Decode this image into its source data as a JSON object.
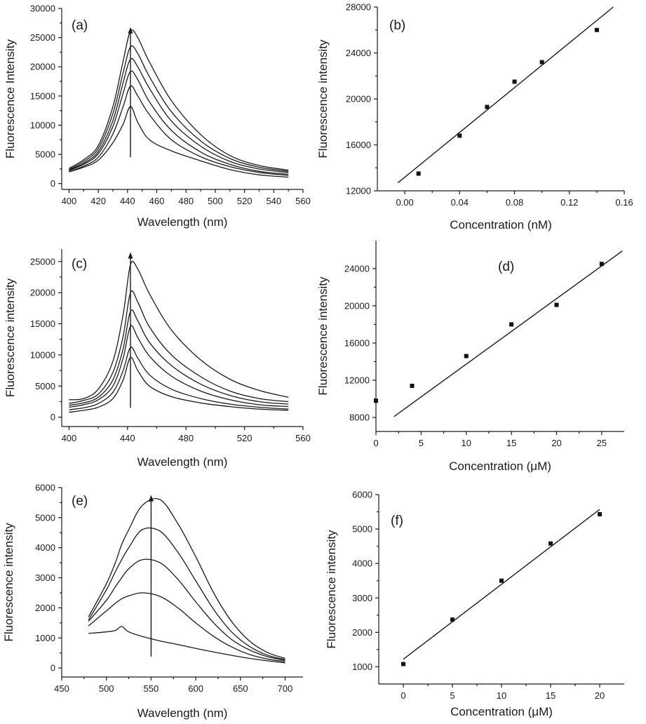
{
  "chart_data": [
    {
      "id": "a",
      "type": "line",
      "panel_label": "(a)",
      "xlabel": "Wavelength (nm)",
      "ylabel": "Fluorescence Intensity",
      "xlim": [
        395,
        560
      ],
      "ylim": [
        -1000,
        30000
      ],
      "xticks": [
        400,
        420,
        440,
        460,
        480,
        500,
        520,
        540,
        560
      ],
      "yticks": [
        0,
        5000,
        10000,
        15000,
        20000,
        25000,
        30000
      ],
      "arrow": {
        "x": 442,
        "y_from": 4500,
        "y_to": 26800
      },
      "series": [
        {
          "x": [
            400,
            410,
            420,
            430,
            437,
            442,
            447,
            455,
            470,
            490,
            510,
            530,
            550
          ],
          "values": [
            2000,
            2800,
            4000,
            7000,
            10200,
            13200,
            10500,
            7500,
            5600,
            3900,
            2400,
            1500,
            1100
          ]
        },
        {
          "x": [
            400,
            410,
            420,
            430,
            437,
            442,
            447,
            455,
            470,
            490,
            510,
            530,
            550
          ],
          "values": [
            2000,
            3000,
            4500,
            8500,
            13200,
            16700,
            15000,
            11800,
            7500,
            4600,
            2900,
            1900,
            1400
          ]
        },
        {
          "x": [
            400,
            410,
            420,
            430,
            437,
            442,
            447,
            455,
            470,
            490,
            510,
            530,
            550
          ],
          "values": [
            2200,
            3300,
            5100,
            9800,
            15500,
            19200,
            17800,
            14000,
            9100,
            5400,
            3300,
            2100,
            1600
          ]
        },
        {
          "x": [
            400,
            410,
            420,
            430,
            437,
            442,
            447,
            455,
            470,
            490,
            510,
            530,
            550
          ],
          "values": [
            2300,
            3500,
            5500,
            10800,
            17300,
            21300,
            20000,
            16300,
            10700,
            6400,
            3800,
            2500,
            1900
          ]
        },
        {
          "x": [
            400,
            410,
            420,
            430,
            437,
            442,
            447,
            455,
            470,
            490,
            510,
            530,
            550
          ],
          "values": [
            2400,
            3800,
            6000,
            12000,
            19000,
            23400,
            22300,
            18300,
            12300,
            7300,
            4300,
            2800,
            2100
          ]
        },
        {
          "x": [
            400,
            410,
            420,
            430,
            437,
            442,
            447,
            455,
            470,
            490,
            510,
            530,
            550
          ],
          "values": [
            2600,
            4100,
            6500,
            13200,
            21000,
            26100,
            25000,
            20800,
            14200,
            8400,
            4800,
            3100,
            2300
          ]
        }
      ]
    },
    {
      "id": "b",
      "type": "scatter",
      "panel_label": "(b)",
      "xlabel": "Concentration (nM)",
      "ylabel": "Fluorescence intensity",
      "xlim": [
        -0.02,
        0.16
      ],
      "ylim": [
        12000,
        28000
      ],
      "xticks": [
        0.0,
        0.04,
        0.08,
        0.12,
        0.16
      ],
      "xtick_labels": [
        "0.00",
        "0.04",
        "0.08",
        "0.12",
        "0.16"
      ],
      "yticks": [
        12000,
        16000,
        20000,
        24000,
        28000
      ],
      "points": [
        {
          "x": 0.01,
          "y": 13500
        },
        {
          "x": 0.04,
          "y": 16800
        },
        {
          "x": 0.06,
          "y": 19300
        },
        {
          "x": 0.08,
          "y": 21500
        },
        {
          "x": 0.1,
          "y": 23200
        },
        {
          "x": 0.14,
          "y": 26000
        }
      ],
      "fit": {
        "x": [
          -0.005,
          0.152
        ],
        "y": [
          12700,
          28000
        ]
      }
    },
    {
      "id": "c",
      "type": "line",
      "panel_label": "(c)",
      "xlabel": "Wavelength (nm)",
      "ylabel": "Fluorescence intensity",
      "xlim": [
        395,
        560
      ],
      "ylim": [
        -1500,
        27000
      ],
      "xticks": [
        400,
        440,
        480,
        520,
        560
      ],
      "yticks": [
        0,
        5000,
        10000,
        15000,
        20000,
        25000
      ],
      "arrow": {
        "x": 442,
        "y_from": 1500,
        "y_to": 26500
      },
      "series": [
        {
          "x": [
            400,
            410,
            420,
            430,
            437,
            442,
            447,
            455,
            470,
            490,
            510,
            530,
            550
          ],
          "values": [
            800,
            1100,
            1600,
            3000,
            6000,
            9600,
            7500,
            5000,
            3300,
            2300,
            1700,
            1300,
            1100
          ]
        },
        {
          "x": [
            400,
            410,
            420,
            430,
            437,
            442,
            447,
            455,
            470,
            490,
            510,
            530,
            550
          ],
          "values": [
            1200,
            1500,
            2200,
            4000,
            7500,
            11200,
            9500,
            6800,
            4500,
            3000,
            2100,
            1600,
            1300
          ]
        },
        {
          "x": [
            400,
            410,
            420,
            430,
            437,
            442,
            447,
            455,
            470,
            490,
            510,
            530,
            550
          ],
          "values": [
            1600,
            2000,
            2800,
            5000,
            9500,
            14600,
            12800,
            9800,
            6600,
            4200,
            2800,
            2000,
            1700
          ]
        },
        {
          "x": [
            400,
            410,
            420,
            430,
            437,
            442,
            447,
            455,
            470,
            490,
            510,
            530,
            550
          ],
          "values": [
            1900,
            2300,
            3200,
            6000,
            11000,
            17000,
            15500,
            12000,
            8300,
            5300,
            3500,
            2500,
            2100
          ]
        },
        {
          "x": [
            400,
            410,
            420,
            430,
            437,
            442,
            447,
            455,
            470,
            490,
            510,
            530,
            550
          ],
          "values": [
            2200,
            2700,
            3700,
            7200,
            13000,
            20000,
            18500,
            14500,
            10000,
            6500,
            4200,
            3000,
            2500
          ]
        },
        {
          "x": [
            400,
            410,
            420,
            430,
            437,
            442,
            447,
            455,
            470,
            490,
            510,
            530,
            550
          ],
          "values": [
            2800,
            3000,
            4500,
            9000,
            16500,
            24500,
            23800,
            19800,
            14000,
            9200,
            6100,
            4300,
            3200
          ]
        }
      ]
    },
    {
      "id": "d",
      "type": "scatter",
      "panel_label": "(d)",
      "xlabel": "Concentration (μM)",
      "ylabel": "Fluorescence intensity",
      "xlim": [
        0,
        27.5
      ],
      "ylim": [
        6500,
        27000
      ],
      "xticks": [
        0,
        5,
        10,
        15,
        20,
        25
      ],
      "yticks": [
        8000,
        12000,
        16000,
        20000,
        24000
      ],
      "points": [
        {
          "x": 0,
          "y": 9800
        },
        {
          "x": 4,
          "y": 11400
        },
        {
          "x": 10,
          "y": 14600
        },
        {
          "x": 15,
          "y": 18000
        },
        {
          "x": 20,
          "y": 20100
        },
        {
          "x": 25,
          "y": 24500
        }
      ],
      "fit": {
        "x": [
          2,
          27.3
        ],
        "y": [
          8100,
          25900
        ]
      }
    },
    {
      "id": "e",
      "type": "line",
      "panel_label": "(e)",
      "xlabel": "Wavelength (nm)",
      "ylabel": "Fluorescence intensity",
      "xlim": [
        450,
        720
      ],
      "ylim": [
        -300,
        6000
      ],
      "xticks": [
        450,
        500,
        550,
        600,
        650,
        700
      ],
      "yticks": [
        0,
        1000,
        2000,
        3000,
        4000,
        5000,
        6000
      ],
      "arrow": {
        "x": 550,
        "y_from": 380,
        "y_to": 5750
      },
      "series": [
        {
          "x": [
            480,
            500,
            510,
            517,
            525,
            540,
            560,
            580,
            600,
            620,
            640,
            660,
            680,
            700
          ],
          "values": [
            1150,
            1200,
            1250,
            1380,
            1200,
            1050,
            900,
            780,
            650,
            530,
            420,
            320,
            240,
            170
          ]
        },
        {
          "x": [
            480,
            500,
            510,
            517,
            525,
            540,
            560,
            580,
            600,
            620,
            640,
            660,
            680,
            700
          ],
          "values": [
            1400,
            1900,
            2150,
            2300,
            2400,
            2500,
            2380,
            2000,
            1500,
            1050,
            700,
            450,
            300,
            210
          ]
        },
        {
          "x": [
            480,
            500,
            510,
            517,
            525,
            540,
            560,
            580,
            600,
            620,
            640,
            660,
            680,
            700
          ],
          "values": [
            1550,
            2250,
            2700,
            3000,
            3300,
            3600,
            3500,
            2950,
            2200,
            1500,
            950,
            600,
            380,
            250
          ]
        },
        {
          "x": [
            480,
            500,
            510,
            517,
            525,
            540,
            560,
            580,
            600,
            620,
            640,
            660,
            680,
            700
          ],
          "values": [
            1600,
            2600,
            3200,
            3600,
            4000,
            4600,
            4550,
            3850,
            2900,
            1950,
            1200,
            720,
            430,
            280
          ]
        },
        {
          "x": [
            480,
            500,
            510,
            517,
            525,
            540,
            560,
            580,
            600,
            620,
            640,
            660,
            680,
            700
          ],
          "values": [
            1700,
            2800,
            3500,
            4100,
            4600,
            5400,
            5600,
            4800,
            3700,
            2500,
            1550,
            900,
            520,
            320
          ]
        }
      ]
    },
    {
      "id": "f",
      "type": "scatter",
      "panel_label": "(f)",
      "xlabel": "Concentration (μM)",
      "ylabel": "Fluorescence intensity",
      "xlim": [
        -2.5,
        22.5
      ],
      "ylim": [
        500,
        6000
      ],
      "xticks": [
        0,
        5,
        10,
        15,
        20
      ],
      "yticks": [
        1000,
        2000,
        3000,
        4000,
        5000,
        6000
      ],
      "points": [
        {
          "x": 0,
          "y": 1080
        },
        {
          "x": 5,
          "y": 2370
        },
        {
          "x": 10,
          "y": 3500
        },
        {
          "x": 15,
          "y": 4580
        },
        {
          "x": 20,
          "y": 5430
        }
      ],
      "fit": {
        "x": [
          0,
          20
        ],
        "y": [
          1220,
          5570
        ]
      }
    }
  ]
}
